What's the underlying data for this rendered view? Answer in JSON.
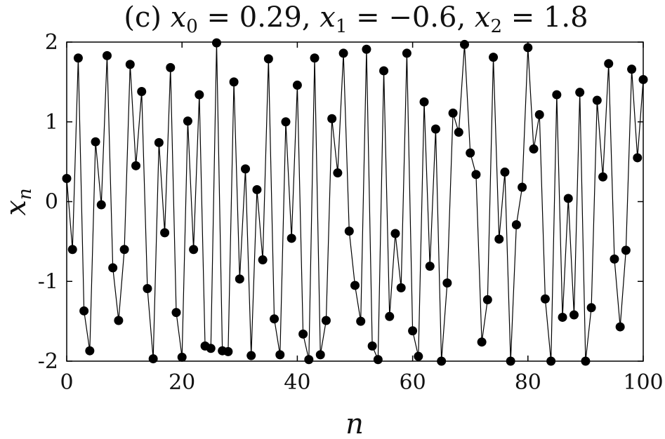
{
  "chart_data": {
    "type": "line",
    "title": "(c) x_0 = 0.29, x_1 = −0.6, x_2 = 1.8",
    "title_parts": {
      "prefix": "(c) ",
      "t1_var": "x",
      "t1_sub": "0",
      "t1_val": " = 0.29, ",
      "t2_var": "x",
      "t2_sub": "1",
      "t2_val": " = −0.6, ",
      "t3_var": "x",
      "t3_sub": "2",
      "t3_val": " = 1.8"
    },
    "xlabel": "n",
    "ylabel": "x_n",
    "ylabel_parts": {
      "var": "x",
      "sub": "n"
    },
    "xlim": [
      0,
      100
    ],
    "ylim": [
      -2,
      2
    ],
    "xticks": [
      0,
      20,
      40,
      60,
      80,
      100
    ],
    "xtick_labels": [
      "0",
      "20",
      "40",
      "60",
      "80",
      "100"
    ],
    "yticks": [
      2,
      1,
      0,
      -1,
      -2
    ],
    "ytick_labels": [
      "2",
      "1",
      "0",
      "-1",
      "-2"
    ],
    "grid": false,
    "line_color": "#000000",
    "marker_color": "#000000",
    "marker": "filled-circle",
    "x": [
      0,
      1,
      2,
      3,
      4,
      5,
      6,
      7,
      8,
      9,
      10,
      11,
      12,
      13,
      14,
      15,
      16,
      17,
      18,
      19,
      20,
      21,
      22,
      23,
      24,
      25,
      26,
      27,
      28,
      29,
      30,
      31,
      32,
      33,
      34,
      35,
      36,
      37,
      38,
      39,
      40,
      41,
      42,
      43,
      44,
      45,
      46,
      47,
      48,
      49,
      50,
      51,
      52,
      53,
      54,
      55,
      56,
      57,
      58,
      59,
      60,
      61,
      62,
      63,
      64,
      65,
      66,
      67,
      68,
      69,
      70,
      71,
      72,
      73,
      74,
      75,
      76,
      77,
      78,
      79,
      80,
      81,
      82,
      83,
      84,
      85,
      86,
      87,
      88,
      89,
      90,
      91,
      92,
      93,
      94,
      95,
      96,
      97,
      98,
      99,
      100
    ],
    "y": [
      0.29,
      -0.6,
      1.8,
      -1.37,
      -1.87,
      0.75,
      -0.04,
      1.83,
      -0.83,
      -1.49,
      -0.6,
      1.72,
      0.45,
      1.38,
      -1.09,
      -1.97,
      0.74,
      -0.39,
      1.68,
      -1.39,
      -1.95,
      1.01,
      -0.6,
      1.34,
      -1.81,
      -1.84,
      1.99,
      -1.87,
      -1.88,
      1.5,
      -0.97,
      0.41,
      -1.93,
      0.15,
      -0.73,
      1.79,
      -1.47,
      -1.92,
      1.0,
      -0.46,
      1.46,
      -1.66,
      -1.98,
      1.8,
      -1.92,
      -1.49,
      1.04,
      0.36,
      1.86,
      -0.37,
      -1.05,
      -1.5,
      1.91,
      -1.81,
      -1.98,
      1.64,
      -1.44,
      -0.4,
      -1.08,
      1.86,
      -1.62,
      -1.94,
      1.25,
      -0.81,
      0.91,
      -2.0,
      -1.02,
      1.11,
      0.87,
      1.97,
      0.61,
      0.34,
      -1.76,
      -1.23,
      1.81,
      -0.47,
      0.37,
      -2.0,
      -0.29,
      0.18,
      1.93,
      0.66,
      1.09,
      -1.22,
      -2.0,
      1.34,
      -1.45,
      0.04,
      -1.42,
      1.37,
      -2.0,
      -1.33,
      1.27,
      0.31,
      1.73,
      -0.72,
      -1.57,
      -0.61,
      1.66,
      0.55,
      1.53
    ]
  }
}
